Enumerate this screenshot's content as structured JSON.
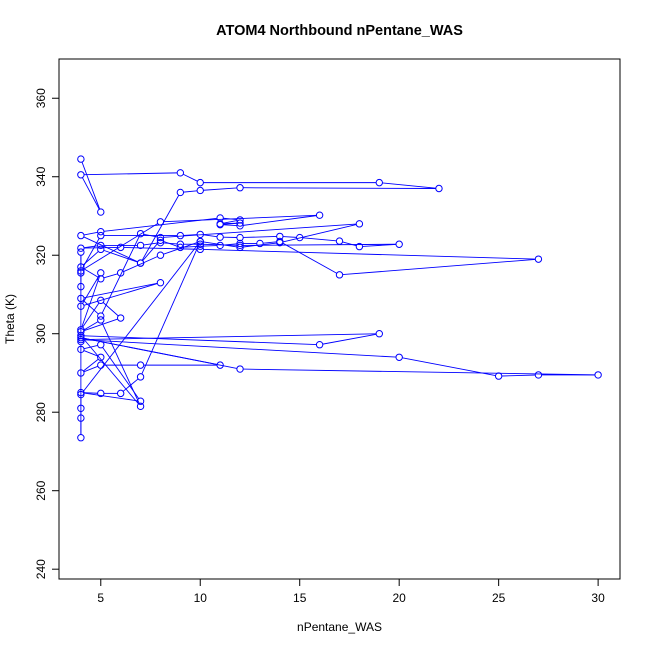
{
  "chart_data": {
    "type": "line",
    "title": "ATOM4 Northbound nPentane_WAS",
    "xlabel": "nPentane_WAS",
    "ylabel": "Theta (K)",
    "xlim": [
      2.9,
      31.1
    ],
    "ylim": [
      237.5,
      370
    ],
    "x_ticks": [
      5,
      10,
      15,
      20,
      25,
      30
    ],
    "y_ticks": [
      240,
      260,
      280,
      300,
      320,
      340,
      360
    ],
    "series": [
      {
        "name": "nPentane_WAS",
        "color": "#0000ff",
        "marker": "open-circle",
        "points": [
          [
            4,
            344.5
          ],
          [
            5,
            331
          ],
          [
            4,
            340.5
          ],
          [
            9,
            341
          ],
          [
            10,
            338.5
          ],
          [
            19,
            338.5
          ],
          [
            22,
            337
          ],
          [
            12,
            337.2
          ],
          [
            10,
            336.5
          ],
          [
            9,
            336
          ],
          [
            7,
            318
          ],
          [
            4,
            325
          ],
          [
            5,
            326
          ],
          [
            11,
            329.5
          ],
          [
            12,
            329
          ],
          [
            11,
            328
          ],
          [
            12,
            328.2
          ],
          [
            11,
            327.8
          ],
          [
            12,
            327.5
          ],
          [
            16,
            330.2
          ],
          [
            8,
            328.5
          ],
          [
            4,
            316
          ],
          [
            5,
            325
          ],
          [
            9,
            325
          ],
          [
            10,
            325.3
          ],
          [
            11,
            324.6
          ],
          [
            12,
            324.5
          ],
          [
            14,
            324.8
          ],
          [
            15,
            324.5
          ],
          [
            17,
            323.6
          ],
          [
            18,
            322.2
          ],
          [
            20,
            322.8
          ],
          [
            12,
            322.5
          ],
          [
            10,
            322.8
          ],
          [
            9,
            322.8
          ],
          [
            8,
            323.2
          ],
          [
            7,
            322.5
          ],
          [
            5,
            322.5
          ],
          [
            4,
            321.8
          ],
          [
            6,
            322
          ],
          [
            10,
            321.5
          ],
          [
            27,
            319
          ],
          [
            17,
            315
          ],
          [
            14,
            323.5
          ],
          [
            13,
            323
          ],
          [
            12,
            323
          ],
          [
            11,
            322.5
          ],
          [
            10,
            322.3
          ],
          [
            9,
            322
          ],
          [
            8,
            323.8
          ],
          [
            7,
            318
          ],
          [
            5,
            321.5
          ],
          [
            4,
            317
          ],
          [
            5,
            314
          ],
          [
            6,
            315.5
          ],
          [
            8,
            320
          ],
          [
            10,
            323.5
          ],
          [
            12,
            322
          ],
          [
            14,
            323.2
          ],
          [
            18,
            328
          ],
          [
            8,
            324.5
          ],
          [
            7,
            325.5
          ],
          [
            5,
            304.5
          ],
          [
            4,
            309
          ],
          [
            8,
            313
          ],
          [
            4,
            307
          ],
          [
            5,
            315.5
          ],
          [
            4,
            301
          ],
          [
            5,
            308.5
          ],
          [
            6,
            304
          ],
          [
            4,
            300.5
          ],
          [
            5,
            303.5
          ],
          [
            7,
            281.5
          ],
          [
            4,
            299.5
          ],
          [
            16,
            297.2
          ],
          [
            19,
            300
          ],
          [
            4,
            298.5
          ],
          [
            20,
            294
          ],
          [
            25,
            289.2
          ],
          [
            27,
            289.5
          ],
          [
            30,
            289.5
          ],
          [
            12,
            291
          ],
          [
            4,
            299
          ],
          [
            11,
            292
          ],
          [
            7,
            292
          ],
          [
            5,
            292
          ],
          [
            4,
            290
          ],
          [
            5,
            294
          ],
          [
            4,
            296
          ],
          [
            5,
            297.2
          ],
          [
            7,
            282.8
          ],
          [
            4,
            285
          ],
          [
            5,
            284.8
          ],
          [
            6,
            284.8
          ],
          [
            7,
            289
          ],
          [
            10,
            323.5
          ],
          [
            4,
            284.5
          ],
          [
            4,
            281
          ],
          [
            4,
            278.5
          ],
          [
            4,
            273.5
          ],
          [
            4,
            298
          ],
          [
            4,
            315.5
          ],
          [
            4,
            320.8
          ],
          [
            4,
            312
          ]
        ]
      }
    ]
  }
}
